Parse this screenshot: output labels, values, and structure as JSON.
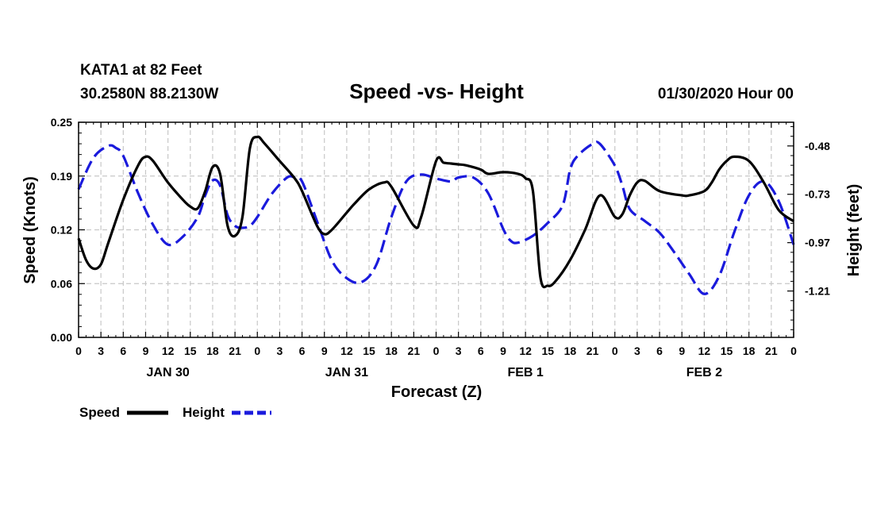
{
  "chart_data": {
    "type": "line",
    "header": {
      "station": "KATA1 at 82 Feet",
      "coords": "30.2580N 88.2130W",
      "title": "Speed -vs- Height",
      "date": "01/30/2020 Hour 00"
    },
    "xlabel": "Forecast (Z)",
    "ylabel_left": "Speed (Knots)",
    "ylabel_right": "Height (feet)",
    "x_range_hours": [
      0,
      96
    ],
    "x_tick_labels": [
      "0",
      "3",
      "6",
      "9",
      "12",
      "15",
      "18",
      "21",
      "0",
      "3",
      "6",
      "9",
      "12",
      "15",
      "18",
      "21",
      "0",
      "3",
      "6",
      "9",
      "12",
      "15",
      "18",
      "21",
      "0",
      "3",
      "6",
      "9",
      "12",
      "15",
      "18",
      "21",
      "0"
    ],
    "day_labels": [
      {
        "label": "JAN 30",
        "hour": 12
      },
      {
        "label": "JAN 31",
        "hour": 36
      },
      {
        "label": "FEB 1",
        "hour": 60
      },
      {
        "label": "FEB 2",
        "hour": 84
      }
    ],
    "ylim_left": [
      0.0,
      0.25
    ],
    "left_ticks": [
      "0.00",
      "0.06",
      "0.12",
      "0.19",
      "0.25"
    ],
    "ylim_right": [
      -1.45,
      -0.36
    ],
    "right_ticks": [
      {
        "label": "-0.48",
        "value": -0.48
      },
      {
        "label": "-0.73",
        "value": -0.725
      },
      {
        "label": "-0.97",
        "value": -0.97
      },
      {
        "label": "-1.21",
        "value": -1.215
      }
    ],
    "grid": true,
    "legend": [
      {
        "name": "Speed",
        "color": "#000000",
        "style": "solid"
      },
      {
        "name": "Height",
        "color": "#1a1adc",
        "style": "dashed"
      }
    ],
    "series": [
      {
        "name": "Speed",
        "axis": "left",
        "color": "#000000",
        "x": [
          0,
          1,
          2,
          3,
          4,
          6,
          8,
          9,
          10,
          12,
          14,
          15,
          16,
          17,
          18,
          19,
          20,
          21,
          22,
          23,
          24,
          25,
          27,
          29,
          30,
          32,
          33,
          34,
          36,
          37,
          39,
          41,
          42,
          45,
          46,
          48,
          49,
          50,
          51,
          52,
          54,
          55,
          57,
          59,
          60,
          61,
          62,
          63,
          64,
          66,
          68,
          70,
          72,
          73,
          74,
          75,
          76,
          78,
          81,
          82,
          84,
          85,
          86,
          87,
          88,
          90,
          92,
          94,
          96
        ],
        "values": [
          0.115,
          0.09,
          0.08,
          0.085,
          0.11,
          0.16,
          0.2,
          0.21,
          0.205,
          0.18,
          0.16,
          0.152,
          0.15,
          0.17,
          0.198,
          0.19,
          0.13,
          0.118,
          0.14,
          0.22,
          0.233,
          0.225,
          0.205,
          0.185,
          0.17,
          0.13,
          0.12,
          0.125,
          0.145,
          0.155,
          0.172,
          0.18,
          0.175,
          0.13,
          0.14,
          0.205,
          0.203,
          0.202,
          0.201,
          0.2,
          0.195,
          0.19,
          0.192,
          0.19,
          0.185,
          0.17,
          0.07,
          0.06,
          0.065,
          0.09,
          0.125,
          0.165,
          0.14,
          0.143,
          0.165,
          0.18,
          0.182,
          0.17,
          0.165,
          0.165,
          0.17,
          0.18,
          0.195,
          0.205,
          0.21,
          0.205,
          0.18,
          0.148,
          0.135
        ]
      },
      {
        "name": "Height",
        "axis": "right",
        "color": "#1a1adc",
        "x": [
          0,
          2,
          4,
          5,
          6,
          8,
          10,
          12,
          14,
          16,
          17,
          18,
          19,
          20,
          21,
          22,
          23,
          24,
          26,
          28,
          29,
          30,
          32,
          34,
          36,
          38,
          40,
          42,
          44,
          46,
          48,
          50,
          51,
          53,
          55,
          57,
          58,
          59,
          61,
          63,
          65,
          66,
          67,
          69,
          70,
          72,
          73,
          74,
          76,
          78,
          80,
          82,
          84,
          86,
          88,
          90,
          92,
          94,
          96
        ],
        "values": [
          -0.7,
          -0.54,
          -0.48,
          -0.49,
          -0.53,
          -0.72,
          -0.88,
          -0.98,
          -0.94,
          -0.84,
          -0.73,
          -0.655,
          -0.68,
          -0.83,
          -0.885,
          -0.895,
          -0.885,
          -0.84,
          -0.72,
          -0.64,
          -0.64,
          -0.66,
          -0.86,
          -1.06,
          -1.15,
          -1.17,
          -1.08,
          -0.84,
          -0.66,
          -0.625,
          -0.645,
          -0.66,
          -0.64,
          -0.64,
          -0.72,
          -0.9,
          -0.96,
          -0.97,
          -0.935,
          -0.87,
          -0.78,
          -0.6,
          -0.53,
          -0.47,
          -0.47,
          -0.58,
          -0.68,
          -0.8,
          -0.86,
          -0.92,
          -1.02,
          -1.13,
          -1.23,
          -1.14,
          -0.92,
          -0.73,
          -0.66,
          -0.76,
          -0.98
        ]
      }
    ]
  }
}
